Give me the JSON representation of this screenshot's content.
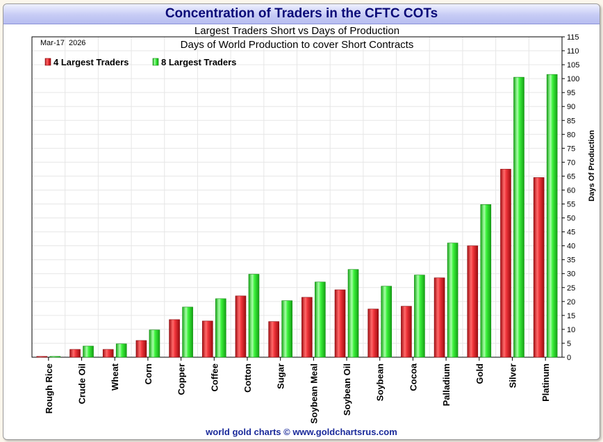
{
  "banner_title": "Concentration of Traders in the CFTC COTs",
  "footer": "world gold charts © www.goldchartsrus.com",
  "colors": {
    "series_4": "#e8242c",
    "series_8": "#2ee82e",
    "banner_text": "#0a0a78",
    "footer_text": "#1a2a9a"
  },
  "chart_data": {
    "type": "bar",
    "title": "Largest Traders Short vs Days of Production",
    "subtitle": "Days of World Production to cover Short Contracts",
    "date_label": "Mar-17  2026",
    "xlabel": "",
    "ylabel": "Days Of Production",
    "ylim": [
      0,
      115
    ],
    "ytick_step": 5,
    "yaxis_side": "right",
    "grid": true,
    "legend_position": "top-left",
    "categories": [
      "Rough Rice",
      "Crude Oil",
      "Wheat",
      "Corn",
      "Copper",
      "Coffee",
      "Cotton",
      "Sugar",
      "Soybean Meal",
      "Soybean Oil",
      "Soybean",
      "Cocoa",
      "Palladium",
      "Gold",
      "Silver",
      "Platinum"
    ],
    "series": [
      {
        "name": "4 Largest Traders",
        "color": "#e8242c",
        "values": [
          0.3,
          2.8,
          2.8,
          6,
          13.5,
          13,
          22,
          12.8,
          21.5,
          24.2,
          17.3,
          18.3,
          28.5,
          40,
          67.5,
          64.5
        ]
      },
      {
        "name": "8 Largest Traders",
        "color": "#2ee82e",
        "values": [
          0.3,
          4,
          4.8,
          9.8,
          18,
          21,
          29.8,
          20.3,
          27,
          31.5,
          25.5,
          29.5,
          41,
          54.8,
          100.5,
          101.5
        ]
      }
    ]
  }
}
